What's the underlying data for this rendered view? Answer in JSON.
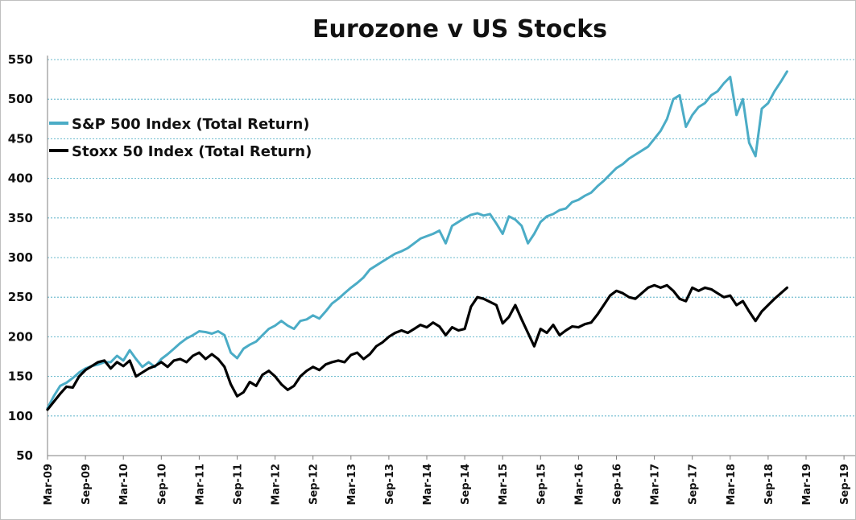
{
  "chart_data": {
    "type": "line",
    "title": "Eurozone v US Stocks",
    "xlabel": "",
    "ylabel": "",
    "ylim": [
      50,
      550
    ],
    "yticks": [
      50,
      100,
      150,
      200,
      250,
      300,
      350,
      400,
      450,
      500,
      550
    ],
    "xticks": [
      "Mar-09",
      "Sep-09",
      "Mar-10",
      "Sep-10",
      "Mar-11",
      "Sep-11",
      "Mar-12",
      "Sep-12",
      "Mar-13",
      "Sep-13",
      "Mar-14",
      "Sep-14",
      "Mar-15",
      "Sep-15",
      "Mar-16",
      "Sep-16",
      "Mar-17",
      "Sep-17",
      "Mar-18",
      "Sep-18",
      "Mar-19",
      "Sep-19"
    ],
    "grid": true,
    "legend": "top-left",
    "x_unit": "months since Mar-09",
    "series": [
      {
        "name": "S&P 500 Index (Total Return)",
        "color": "#4bacc6",
        "points": [
          [
            0,
            110
          ],
          [
            1,
            125
          ],
          [
            2,
            138
          ],
          [
            3,
            142
          ],
          [
            4,
            148
          ],
          [
            5,
            155
          ],
          [
            6,
            160
          ],
          [
            7,
            163
          ],
          [
            8,
            165
          ],
          [
            9,
            168
          ],
          [
            10,
            168
          ],
          [
            11,
            176
          ],
          [
            12,
            170
          ],
          [
            13,
            183
          ],
          [
            14,
            172
          ],
          [
            15,
            162
          ],
          [
            16,
            168
          ],
          [
            17,
            162
          ],
          [
            18,
            172
          ],
          [
            19,
            178
          ],
          [
            20,
            185
          ],
          [
            21,
            192
          ],
          [
            22,
            198
          ],
          [
            23,
            202
          ],
          [
            24,
            207
          ],
          [
            25,
            206
          ],
          [
            26,
            204
          ],
          [
            27,
            207
          ],
          [
            28,
            202
          ],
          [
            29,
            180
          ],
          [
            30,
            173
          ],
          [
            31,
            185
          ],
          [
            32,
            190
          ],
          [
            33,
            194
          ],
          [
            34,
            202
          ],
          [
            35,
            210
          ],
          [
            36,
            214
          ],
          [
            37,
            220
          ],
          [
            38,
            214
          ],
          [
            39,
            210
          ],
          [
            40,
            220
          ],
          [
            41,
            222
          ],
          [
            42,
            227
          ],
          [
            43,
            223
          ],
          [
            44,
            232
          ],
          [
            45,
            242
          ],
          [
            46,
            248
          ],
          [
            47,
            255
          ],
          [
            48,
            262
          ],
          [
            49,
            268
          ],
          [
            50,
            275
          ],
          [
            51,
            285
          ],
          [
            52,
            290
          ],
          [
            53,
            295
          ],
          [
            54,
            300
          ],
          [
            55,
            305
          ],
          [
            56,
            308
          ],
          [
            57,
            312
          ],
          [
            58,
            318
          ],
          [
            59,
            324
          ],
          [
            60,
            327
          ],
          [
            61,
            330
          ],
          [
            62,
            334
          ],
          [
            63,
            318
          ],
          [
            64,
            340
          ],
          [
            65,
            345
          ],
          [
            66,
            350
          ],
          [
            67,
            354
          ],
          [
            68,
            356
          ],
          [
            69,
            353
          ],
          [
            70,
            355
          ],
          [
            71,
            343
          ],
          [
            72,
            330
          ],
          [
            73,
            352
          ],
          [
            74,
            348
          ],
          [
            75,
            340
          ],
          [
            76,
            318
          ],
          [
            77,
            330
          ],
          [
            78,
            345
          ],
          [
            79,
            352
          ],
          [
            80,
            355
          ],
          [
            81,
            360
          ],
          [
            82,
            362
          ],
          [
            83,
            370
          ],
          [
            84,
            373
          ],
          [
            85,
            378
          ],
          [
            86,
            382
          ],
          [
            87,
            390
          ],
          [
            88,
            397
          ],
          [
            89,
            405
          ],
          [
            90,
            413
          ],
          [
            91,
            418
          ],
          [
            92,
            425
          ],
          [
            93,
            430
          ],
          [
            94,
            435
          ],
          [
            95,
            440
          ],
          [
            96,
            450
          ],
          [
            97,
            460
          ],
          [
            98,
            475
          ],
          [
            99,
            500
          ],
          [
            100,
            505
          ],
          [
            101,
            465
          ],
          [
            102,
            480
          ],
          [
            103,
            490
          ],
          [
            104,
            495
          ],
          [
            105,
            505
          ],
          [
            106,
            510
          ],
          [
            107,
            520
          ],
          [
            108,
            528
          ],
          [
            109,
            480
          ],
          [
            110,
            500
          ],
          [
            111,
            445
          ],
          [
            112,
            428
          ],
          [
            113,
            488
          ],
          [
            114,
            495
          ],
          [
            115,
            510
          ],
          [
            116,
            522
          ],
          [
            117,
            535
          ]
        ]
      },
      {
        "name": "Stoxx 50 Index (Total Return)",
        "color": "#000000",
        "points": [
          [
            0,
            108
          ],
          [
            1,
            118
          ],
          [
            2,
            128
          ],
          [
            3,
            137
          ],
          [
            4,
            136
          ],
          [
            5,
            150
          ],
          [
            6,
            158
          ],
          [
            7,
            163
          ],
          [
            8,
            168
          ],
          [
            9,
            170
          ],
          [
            10,
            160
          ],
          [
            11,
            168
          ],
          [
            12,
            163
          ],
          [
            13,
            170
          ],
          [
            14,
            150
          ],
          [
            15,
            155
          ],
          [
            16,
            160
          ],
          [
            17,
            163
          ],
          [
            18,
            168
          ],
          [
            19,
            162
          ],
          [
            20,
            170
          ],
          [
            21,
            172
          ],
          [
            22,
            168
          ],
          [
            23,
            176
          ],
          [
            24,
            180
          ],
          [
            25,
            172
          ],
          [
            26,
            178
          ],
          [
            27,
            172
          ],
          [
            28,
            162
          ],
          [
            29,
            140
          ],
          [
            30,
            125
          ],
          [
            31,
            130
          ],
          [
            32,
            143
          ],
          [
            33,
            138
          ],
          [
            34,
            152
          ],
          [
            35,
            157
          ],
          [
            36,
            150
          ],
          [
            37,
            140
          ],
          [
            38,
            133
          ],
          [
            39,
            138
          ],
          [
            40,
            150
          ],
          [
            41,
            157
          ],
          [
            42,
            162
          ],
          [
            43,
            158
          ],
          [
            44,
            165
          ],
          [
            45,
            168
          ],
          [
            46,
            170
          ],
          [
            47,
            168
          ],
          [
            48,
            177
          ],
          [
            49,
            180
          ],
          [
            50,
            172
          ],
          [
            51,
            178
          ],
          [
            52,
            188
          ],
          [
            53,
            193
          ],
          [
            54,
            200
          ],
          [
            55,
            205
          ],
          [
            56,
            208
          ],
          [
            57,
            205
          ],
          [
            58,
            210
          ],
          [
            59,
            215
          ],
          [
            60,
            212
          ],
          [
            61,
            218
          ],
          [
            62,
            213
          ],
          [
            63,
            202
          ],
          [
            64,
            212
          ],
          [
            65,
            208
          ],
          [
            66,
            210
          ],
          [
            67,
            238
          ],
          [
            68,
            250
          ],
          [
            69,
            248
          ],
          [
            70,
            244
          ],
          [
            71,
            240
          ],
          [
            72,
            217
          ],
          [
            73,
            225
          ],
          [
            74,
            240
          ],
          [
            75,
            222
          ],
          [
            76,
            205
          ],
          [
            77,
            188
          ],
          [
            78,
            210
          ],
          [
            79,
            205
          ],
          [
            80,
            215
          ],
          [
            81,
            202
          ],
          [
            82,
            208
          ],
          [
            83,
            213
          ],
          [
            84,
            212
          ],
          [
            85,
            216
          ],
          [
            86,
            218
          ],
          [
            87,
            228
          ],
          [
            88,
            240
          ],
          [
            89,
            252
          ],
          [
            90,
            258
          ],
          [
            91,
            255
          ],
          [
            92,
            250
          ],
          [
            93,
            248
          ],
          [
            94,
            255
          ],
          [
            95,
            262
          ],
          [
            96,
            265
          ],
          [
            97,
            262
          ],
          [
            98,
            265
          ],
          [
            99,
            258
          ],
          [
            100,
            248
          ],
          [
            101,
            245
          ],
          [
            102,
            262
          ],
          [
            103,
            258
          ],
          [
            104,
            262
          ],
          [
            105,
            260
          ],
          [
            106,
            255
          ],
          [
            107,
            250
          ],
          [
            108,
            252
          ],
          [
            109,
            240
          ],
          [
            110,
            245
          ],
          [
            111,
            232
          ],
          [
            112,
            220
          ],
          [
            113,
            232
          ],
          [
            114,
            240
          ],
          [
            115,
            248
          ],
          [
            116,
            255
          ],
          [
            117,
            262
          ]
        ]
      }
    ]
  }
}
